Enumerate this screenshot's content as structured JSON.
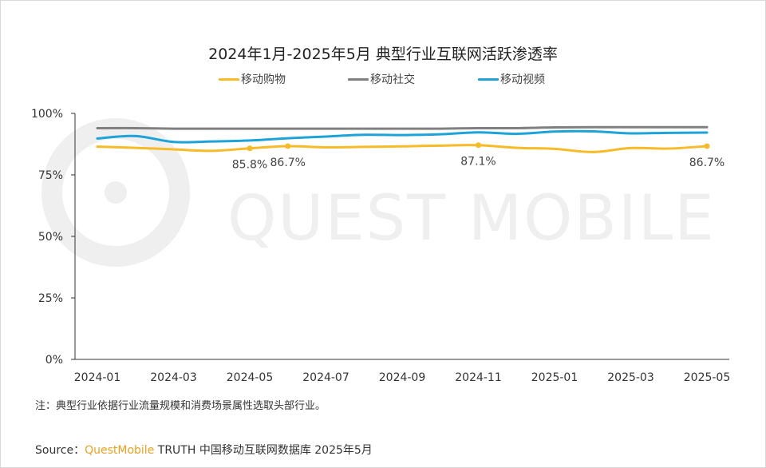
{
  "colors": {
    "shopping": "#f8bb28",
    "social": "#808080",
    "video": "#1ea3d8",
    "watermark": "#efefef",
    "axis": "#333333"
  },
  "watermark": "QUEST MOBILE",
  "chart_data": {
    "type": "line",
    "title": "2024年1月-2025年5月 典型行业互联网活跃渗透率",
    "xlabel": "",
    "ylabel": "",
    "ylim": [
      0,
      100
    ],
    "y_ticks": [
      "0%",
      "25%",
      "50%",
      "75%",
      "100%"
    ],
    "y_tick_values": [
      0,
      25,
      50,
      75,
      100
    ],
    "x": [
      "2024-01",
      "2024-02",
      "2024-03",
      "2024-04",
      "2024-05",
      "2024-06",
      "2024-07",
      "2024-08",
      "2024-09",
      "2024-10",
      "2024-11",
      "2024-12",
      "2025-01",
      "2025-02",
      "2025-03",
      "2025-04",
      "2025-05"
    ],
    "x_tick_labels": [
      "2024-01",
      "2024-03",
      "2024-05",
      "2024-07",
      "2024-09",
      "2024-11",
      "2025-01",
      "2025-03",
      "2025-05"
    ],
    "x_tick_index": [
      0,
      2,
      4,
      6,
      8,
      10,
      12,
      14,
      16
    ],
    "legend_position": "top-center",
    "series": [
      {
        "key": "shopping",
        "name": "移动购物",
        "values": [
          86.5,
          86.0,
          85.4,
          84.8,
          85.8,
          86.7,
          86.2,
          86.4,
          86.6,
          86.9,
          87.1,
          86.0,
          85.6,
          84.3,
          85.9,
          85.7,
          86.7
        ]
      },
      {
        "key": "social",
        "name": "移动社交",
        "values": [
          94.0,
          94.0,
          93.8,
          93.8,
          93.8,
          93.8,
          93.8,
          93.8,
          93.8,
          93.8,
          94.0,
          94.0,
          94.3,
          94.4,
          94.4,
          94.4,
          94.4
        ]
      },
      {
        "key": "video",
        "name": "移动视频",
        "values": [
          89.8,
          90.8,
          88.4,
          88.6,
          89.0,
          89.9,
          90.6,
          91.3,
          91.2,
          91.5,
          92.3,
          91.7,
          92.6,
          92.7,
          91.9,
          92.1,
          92.2
        ]
      }
    ],
    "annotations": [
      {
        "series": "shopping",
        "index": 4,
        "label": "85.8%"
      },
      {
        "series": "shopping",
        "index": 5,
        "label": "86.7%"
      },
      {
        "series": "shopping",
        "index": 10,
        "label": "87.1%"
      },
      {
        "series": "shopping",
        "index": 16,
        "label": "86.7%"
      }
    ]
  },
  "note": "注：典型行业依据行业流量规模和消费场景属性选取头部行业。",
  "source": {
    "prefix": "Source：",
    "brand": "QuestMobile",
    "text": " TRUTH 中国移动互联网数据库 2025年5月"
  }
}
